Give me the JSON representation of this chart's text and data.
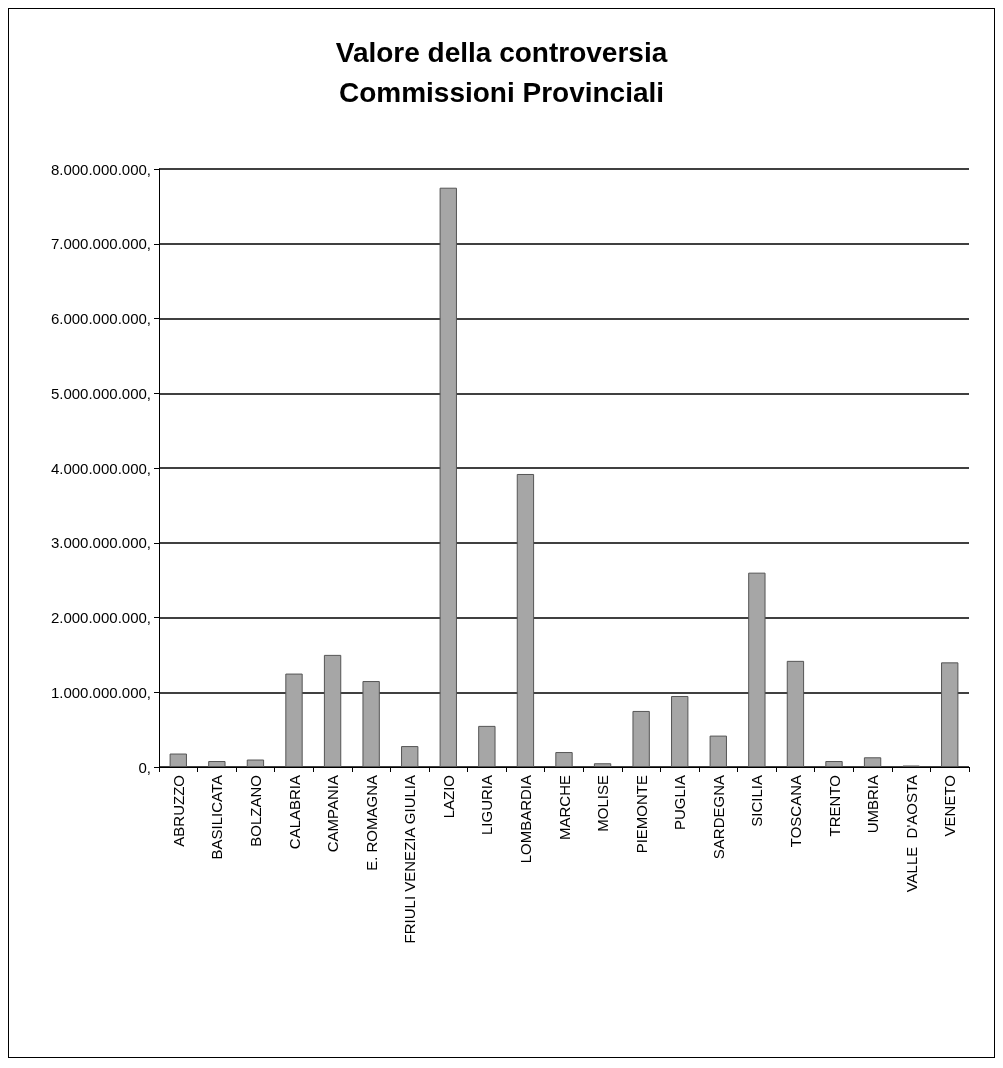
{
  "chart_data": {
    "type": "bar",
    "title": "Valore della controversia\nCommissioni Provinciali",
    "categories": [
      "ABRUZZO",
      "BASILICATA",
      "BOLZANO",
      "CALABRIA",
      "CAMPANIA",
      "E. ROMAGNA",
      "FRIULI VENEZIA GIULIA",
      "LAZIO",
      "LIGURIA",
      "LOMBARDIA",
      "MARCHE",
      "MOLISE",
      "PIEMONTE",
      "PUGLIA",
      "SARDEGNA",
      "SICILIA",
      "TOSCANA",
      "TRENTO",
      "UMBRIA",
      "VALLE  D'AOSTA",
      "VENETO"
    ],
    "values": [
      180000000,
      80000000,
      100000000,
      1250000000,
      1500000000,
      1150000000,
      280000000,
      7750000000,
      550000000,
      3920000000,
      200000000,
      50000000,
      750000000,
      950000000,
      420000000,
      2600000000,
      1420000000,
      80000000,
      130000000,
      20000000,
      1400000000
    ],
    "color": "#a6a6a6",
    "ylim": [
      0,
      8000000000
    ],
    "yticks": [
      {
        "value": 0,
        "label": "0,"
      },
      {
        "value": 1000000000,
        "label": "1.000.000.000,"
      },
      {
        "value": 2000000000,
        "label": "2.000.000.000,"
      },
      {
        "value": 3000000000,
        "label": "3.000.000.000,"
      },
      {
        "value": 4000000000,
        "label": "4.000.000.000,"
      },
      {
        "value": 5000000000,
        "label": "5.000.000.000,"
      },
      {
        "value": 6000000000,
        "label": "6.000.000.000,"
      },
      {
        "value": 7000000000,
        "label": "7.000.000.000,"
      },
      {
        "value": 8000000000,
        "label": "8.000.000.000,"
      }
    ],
    "grid": "y"
  }
}
